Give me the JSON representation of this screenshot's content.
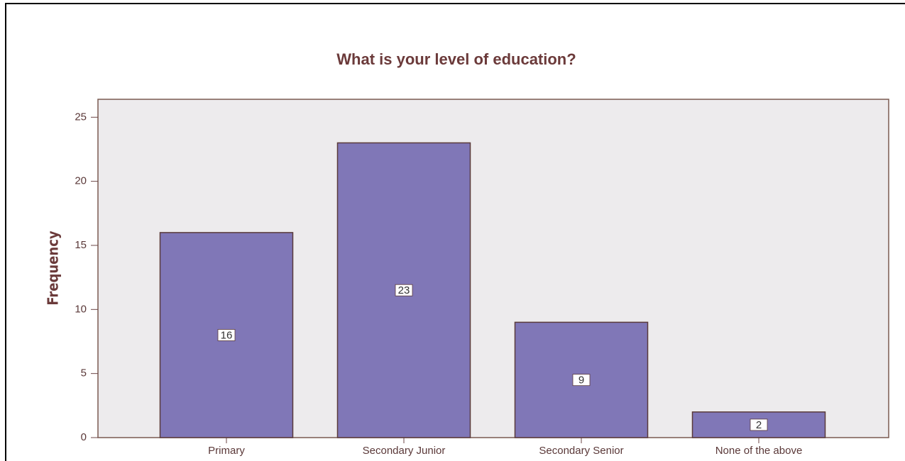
{
  "chart_data": {
    "type": "bar",
    "title": "What is your level of education?",
    "y_label": "Frequency",
    "categories": [
      "Primary",
      "Secondary Junior",
      "Secondary Senior",
      "None of the above"
    ],
    "values": [
      16,
      23,
      9,
      2
    ],
    "color": "#8077b7",
    "ylim": [
      0,
      26.4
    ],
    "yticks": [
      0,
      5,
      10,
      15,
      20,
      25
    ],
    "grid": false
  }
}
